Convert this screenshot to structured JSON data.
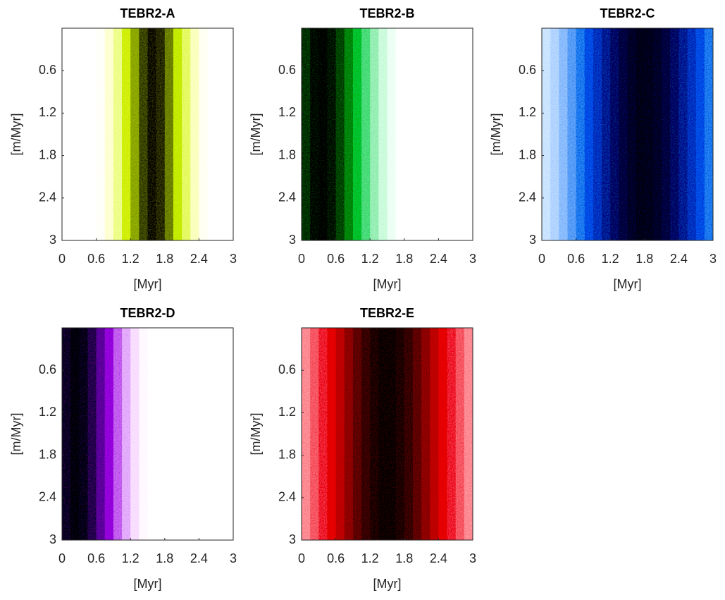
{
  "chart_data": [
    {
      "type": "heatmap",
      "title": "TEBR2-A",
      "xlabel": "[Myr]",
      "ylabel": "[m/Myr]",
      "x": [
        0.075,
        0.225,
        0.375,
        0.525,
        0.675,
        0.825,
        0.975,
        1.125,
        1.275,
        1.425,
        1.575,
        1.725,
        1.875,
        2.025,
        2.175,
        2.325,
        2.475,
        2.625,
        2.775,
        2.925
      ],
      "values": [
        0,
        0,
        0.002,
        0.009,
        0.03,
        0.09,
        0.2,
        0.4,
        0.65,
        0.88,
        1,
        0.94,
        0.74,
        0.48,
        0.26,
        0.12,
        0.04,
        0.01,
        0,
        0
      ],
      "colormap": [
        "#ffffff",
        "#c4e400",
        "#3a3a00"
      ],
      "xlim": [
        0,
        3
      ],
      "ylim": [
        0,
        3
      ],
      "y_reversed": true,
      "xticks": [
        0,
        0.6,
        1.2,
        1.8,
        2.4,
        3
      ],
      "yticks": [
        0.6,
        1.2,
        1.8,
        2.4,
        3
      ]
    },
    {
      "type": "heatmap",
      "title": "TEBR2-B",
      "xlabel": "[Myr]",
      "ylabel": "[m/Myr]",
      "x": [
        0.075,
        0.225,
        0.375,
        0.525,
        0.675,
        0.825,
        0.975,
        1.125,
        1.275,
        1.425,
        1.575,
        1.725,
        1.875,
        2.025,
        2.175,
        2.325,
        2.475,
        2.625,
        2.775,
        2.925
      ],
      "values": [
        0.86,
        0.97,
        1,
        0.94,
        0.81,
        0.64,
        0.46,
        0.3,
        0.18,
        0.1,
        0.05,
        0.02,
        0.01,
        0,
        0,
        0,
        0,
        0,
        0,
        0
      ],
      "colormap": [
        "#ffffff",
        "#00c040",
        "#002a10"
      ],
      "xlim": [
        0,
        3
      ],
      "ylim": [
        0,
        3
      ],
      "y_reversed": true,
      "xticks": [
        0,
        0.6,
        1.2,
        1.8,
        2.4,
        3
      ],
      "yticks": [
        0.6,
        1.2,
        1.8,
        2.4,
        3
      ]
    },
    {
      "type": "heatmap",
      "title": "TEBR2-C",
      "xlabel": "[Myr]",
      "ylabel": "[m/Myr]",
      "x": [
        0.075,
        0.225,
        0.375,
        0.525,
        0.675,
        0.825,
        0.975,
        1.125,
        1.275,
        1.425,
        1.575,
        1.725,
        1.875,
        2.025,
        2.175,
        2.325,
        2.475,
        2.625,
        2.775,
        2.925
      ],
      "values": [
        0.1,
        0.14,
        0.2,
        0.28,
        0.37,
        0.48,
        0.59,
        0.7,
        0.81,
        0.9,
        0.96,
        1,
        0.99,
        0.96,
        0.9,
        0.81,
        0.7,
        0.59,
        0.48,
        0.37
      ],
      "colormap": [
        "#ffffff",
        "#0062e0",
        "#001240"
      ],
      "xlim": [
        0,
        3
      ],
      "ylim": [
        0,
        3
      ],
      "y_reversed": true,
      "xticks": [
        0,
        0.6,
        1.2,
        1.8,
        2.4,
        3
      ],
      "yticks": [
        0.6,
        1.2,
        1.8,
        2.4,
        3
      ]
    },
    {
      "type": "heatmap",
      "title": "TEBR2-D",
      "xlabel": "[Myr]",
      "ylabel": "[m/Myr]",
      "x": [
        0.075,
        0.225,
        0.375,
        0.525,
        0.675,
        0.825,
        0.975,
        1.125,
        1.275,
        1.425,
        1.575,
        1.725,
        1.875,
        2.025,
        2.175,
        2.325,
        2.475,
        2.625,
        2.775,
        2.925
      ],
      "values": [
        0.93,
        1,
        0.96,
        0.83,
        0.64,
        0.44,
        0.27,
        0.15,
        0.07,
        0.03,
        0.01,
        0,
        0,
        0,
        0,
        0,
        0,
        0,
        0,
        0
      ],
      "colormap": [
        "#ffffff",
        "#9400d4",
        "#240034"
      ],
      "xlim": [
        0,
        3
      ],
      "ylim": [
        0,
        3
      ],
      "y_reversed": true,
      "xticks": [
        0,
        0.6,
        1.2,
        1.8,
        2.4,
        3
      ],
      "yticks": [
        0.6,
        1.2,
        1.8,
        2.4,
        3
      ]
    },
    {
      "type": "heatmap",
      "title": "TEBR2-E",
      "xlabel": "[Myr]",
      "ylabel": "[m/Myr]",
      "x": [
        0.075,
        0.225,
        0.375,
        0.525,
        0.675,
        0.825,
        0.975,
        1.125,
        1.275,
        1.425,
        1.575,
        1.725,
        1.875,
        2.025,
        2.175,
        2.325,
        2.475,
        2.625,
        2.775,
        2.925
      ],
      "values": [
        0.2,
        0.28,
        0.37,
        0.48,
        0.59,
        0.7,
        0.81,
        0.9,
        0.96,
        1,
        1,
        0.96,
        0.9,
        0.81,
        0.7,
        0.59,
        0.48,
        0.37,
        0.28,
        0.2
      ],
      "colormap": [
        "#ffffff",
        "#e00012",
        "#360000"
      ],
      "xlim": [
        0,
        3
      ],
      "ylim": [
        0,
        3
      ],
      "y_reversed": true,
      "xticks": [
        0,
        0.6,
        1.2,
        1.8,
        2.4,
        3
      ],
      "yticks": [
        0.6,
        1.2,
        1.8,
        2.4,
        3
      ]
    }
  ]
}
